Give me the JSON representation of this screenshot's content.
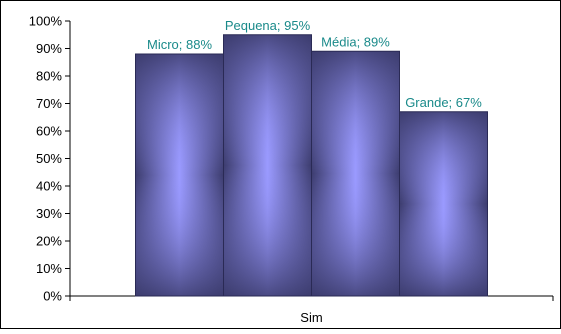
{
  "chart_data": {
    "type": "bar",
    "categories": [
      "Sim"
    ],
    "series": [
      {
        "name": "Micro",
        "values": [
          88
        ]
      },
      {
        "name": "Pequena",
        "values": [
          95
        ]
      },
      {
        "name": "Média",
        "values": [
          89
        ]
      },
      {
        "name": "Grande",
        "values": [
          67
        ]
      }
    ],
    "data_labels": [
      "Micro; 88%",
      "Pequena; 95%",
      "Média; 89%",
      "Grande; 67%"
    ],
    "y_ticks": [
      "0%",
      "10%",
      "20%",
      "30%",
      "40%",
      "50%",
      "60%",
      "70%",
      "80%",
      "90%",
      "100%"
    ],
    "ylim": [
      0,
      100
    ],
    "y_unit": "%",
    "title": "",
    "xlabel": "",
    "ylabel": "",
    "grid": false,
    "legend": "none",
    "colors": {
      "bar_edge": "#2a2a55",
      "bar_dark": "#3c3c6e",
      "bar_light": "#9a9aff",
      "label_text": "#1a8a8a",
      "axis": "#000000",
      "border": "#000000"
    }
  }
}
